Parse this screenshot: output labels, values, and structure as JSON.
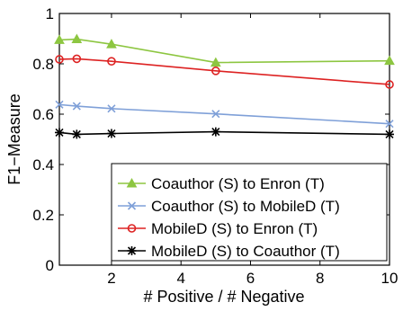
{
  "chart_data": {
    "type": "line",
    "title": "",
    "xlabel": "# Positive / # Negative",
    "ylabel": "F1−Measure",
    "xlim": [
      0.5,
      10
    ],
    "ylim": [
      0,
      1
    ],
    "xticks": [
      2,
      4,
      6,
      8,
      10
    ],
    "yticks": [
      0,
      0.2,
      0.4,
      0.6,
      0.8,
      1
    ],
    "ytick_labels": [
      "0",
      "0.2",
      "0.4",
      "0.6",
      "0.8",
      "1"
    ],
    "grid": false,
    "legend_position": "bottom-right",
    "series": [
      {
        "name": "Coauthor (S) to Enron (T)",
        "color": "#8dc641",
        "marker": "triangle",
        "x": [
          0.5,
          1,
          2,
          5,
          10
        ],
        "y": [
          0.895,
          0.898,
          0.878,
          0.805,
          0.812
        ]
      },
      {
        "name": "Coauthor (S) to MobileD (T)",
        "color": "#7fa0d8",
        "marker": "x",
        "x": [
          0.5,
          1,
          2,
          5,
          10
        ],
        "y": [
          0.638,
          0.632,
          0.622,
          0.601,
          0.562
        ]
      },
      {
        "name": "MobileD (S) to Enron (T)",
        "color": "#dd2222",
        "marker": "circle",
        "x": [
          0.5,
          1,
          2,
          5,
          10
        ],
        "y": [
          0.818,
          0.82,
          0.81,
          0.772,
          0.718
        ]
      },
      {
        "name": "MobileD (S) to Coauthor (T)",
        "color": "#000000",
        "marker": "star",
        "x": [
          0.5,
          1,
          2,
          5,
          10
        ],
        "y": [
          0.527,
          0.52,
          0.523,
          0.53,
          0.52
        ]
      }
    ]
  }
}
